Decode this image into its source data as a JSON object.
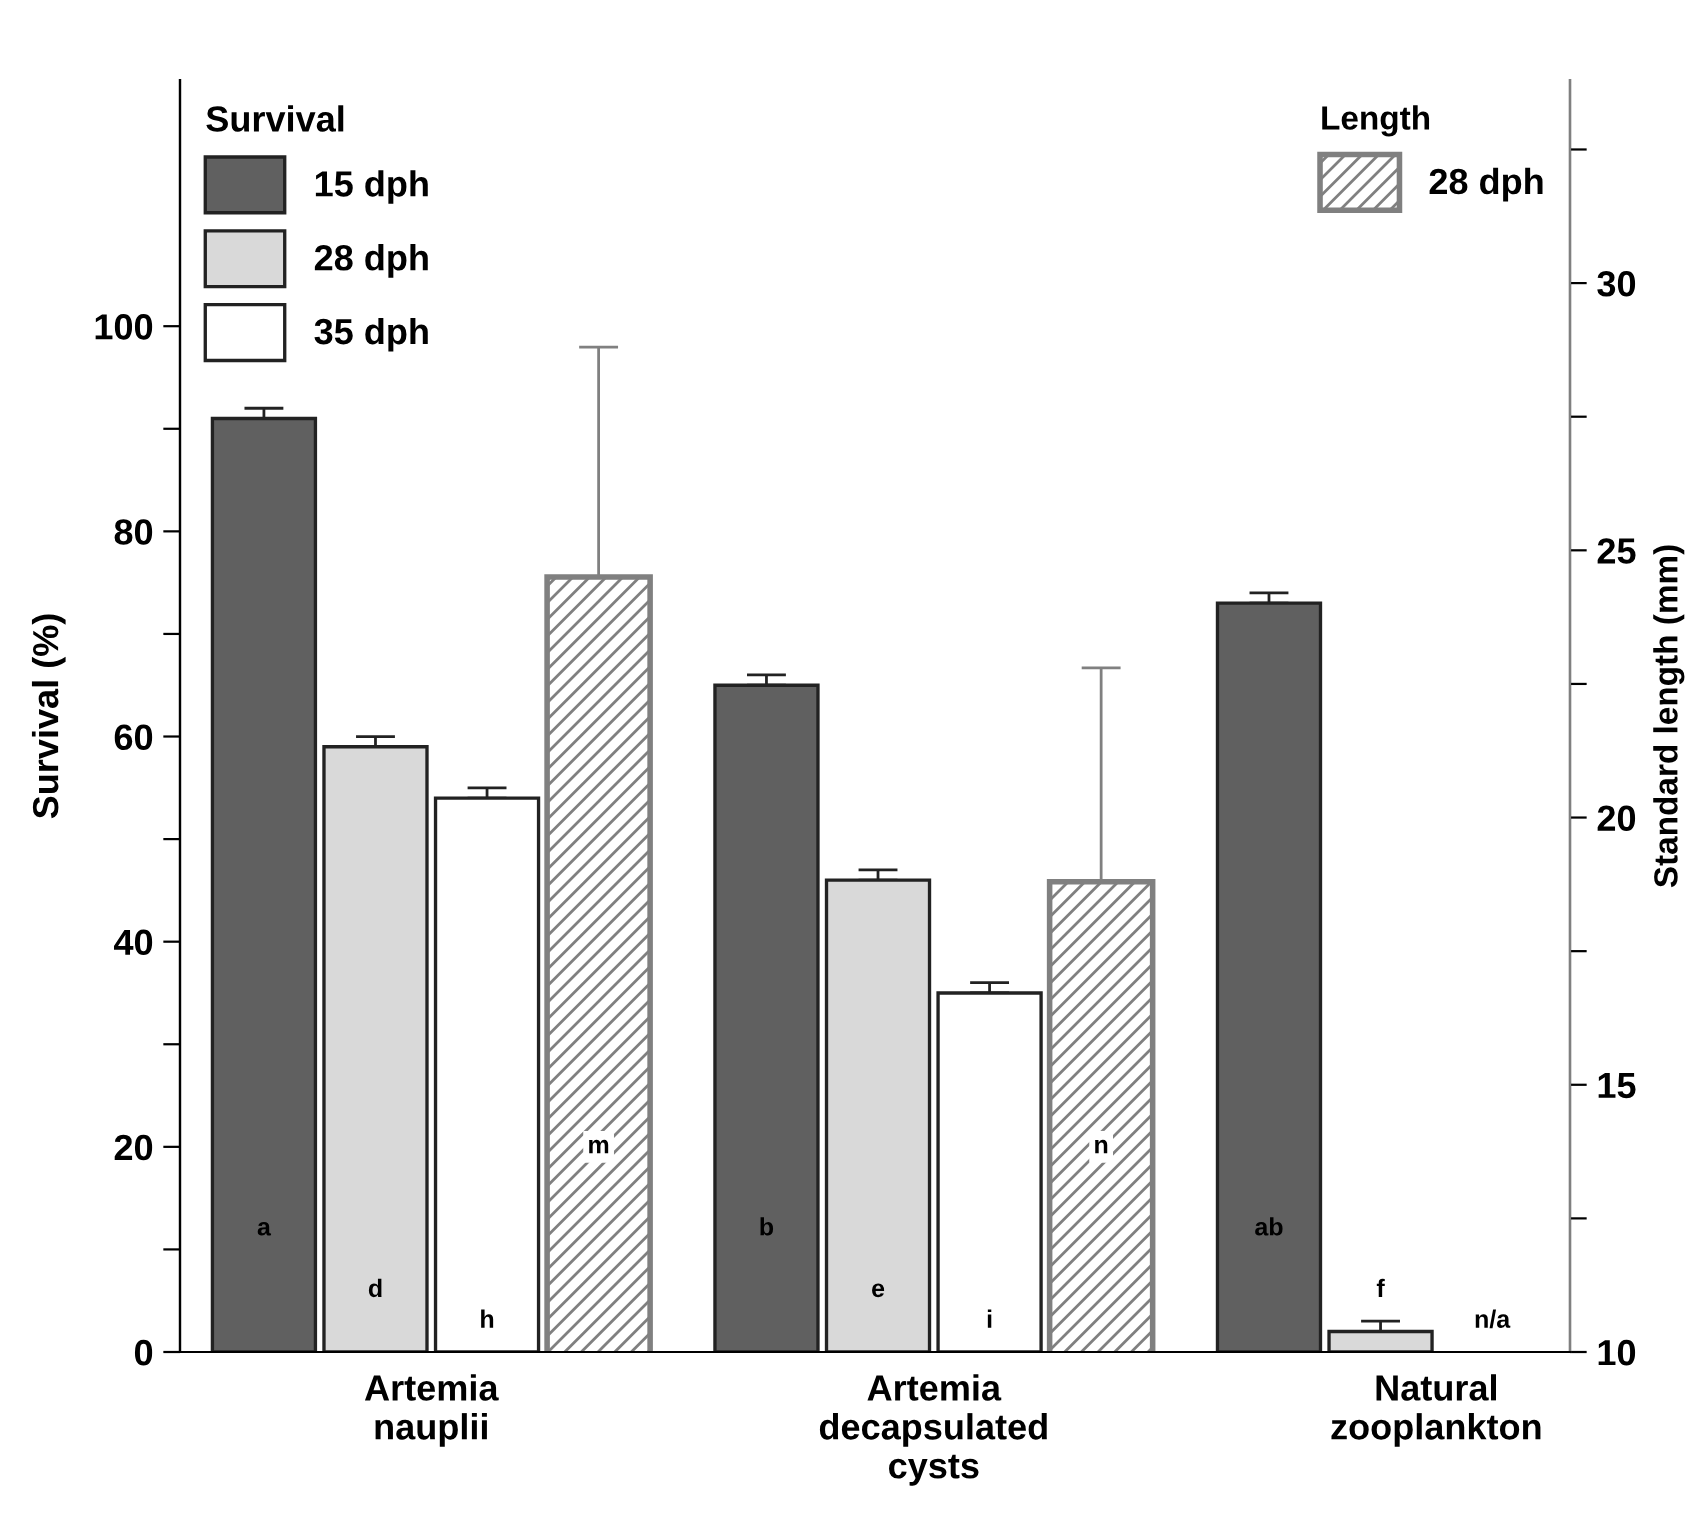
{
  "chart_data": {
    "type": "bar",
    "ylabel": "Survival (%)",
    "y2label": "Standard length (mm)",
    "legend_title": "Survival",
    "annotations": [
      "Length"
    ],
    "categories": [
      "Artemia\nnauplii",
      "Artemia\ndecapsulated\ncysts",
      "Natural\nzooplankton"
    ],
    "series": [
      {
        "name": "15 dph",
        "color": "#606060",
        "values": [
          91,
          65,
          73
        ],
        "errors": [
          [
            91,
            92
          ],
          [
            65,
            66
          ],
          [
            73,
            74
          ]
        ],
        "value_labels": [
          "a",
          "b",
          "ab"
        ]
      },
      {
        "name": "28 dph",
        "color": "#d9d9d9",
        "values": [
          59,
          46,
          2
        ],
        "errors": [
          [
            59,
            60
          ],
          [
            46,
            47
          ],
          [
            2,
            3
          ]
        ],
        "value_labels": [
          "d",
          "e",
          "f"
        ]
      },
      {
        "name": "35 dph",
        "color": "#ffffff",
        "values": [
          54,
          35,
          null
        ],
        "errors": [
          [
            54,
            55
          ],
          [
            35,
            36
          ],
          null
        ],
        "value_labels": [
          "h",
          "i",
          "n/a"
        ]
      },
      {
        "name": "28 dph",
        "color": "#808080",
        "axis": "y2",
        "values": [
          24.5,
          18.8,
          null
        ],
        "errors": [
          [
            24.5,
            28.8
          ],
          [
            18.8,
            22.8
          ],
          null
        ],
        "value_labels": [
          "m",
          "n",
          null
        ]
      }
    ],
    "ylim": [
      0,
      124
    ],
    "yticks": [
      0,
      {
        "value": 10,
        "label": null
      },
      20,
      {
        "value": 30,
        "label": null
      },
      40,
      {
        "value": 50,
        "label": null
      },
      60,
      {
        "value": 70,
        "label": null
      },
      80,
      {
        "value": 90,
        "label": null
      },
      100
    ],
    "y2lim": [
      10,
      33.8
    ],
    "y2ticks": [
      10,
      {
        "value": 12.5,
        "label": null
      },
      15,
      {
        "value": 17.5,
        "label": null
      },
      20,
      {
        "value": 22.5,
        "label": null
      },
      25,
      {
        "value": 27.5,
        "label": null
      },
      30,
      {
        "value": 32.5,
        "label": null
      }
    ],
    "grid": false,
    "legend": "top left"
  }
}
